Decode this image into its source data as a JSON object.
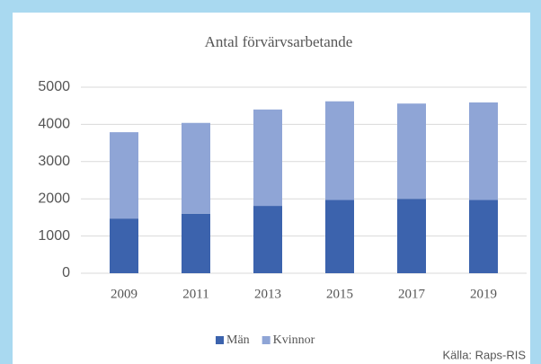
{
  "chart_data": {
    "type": "stacked_bar",
    "title": "Antal förvärvsarbetande",
    "categories": [
      "2009",
      "2011",
      "2013",
      "2015",
      "2017",
      "2019"
    ],
    "series": [
      {
        "name": "Män",
        "color": "#3c63ad",
        "values": [
          1470,
          1600,
          1810,
          1970,
          2000,
          1970
        ]
      },
      {
        "name": "Kvinnor",
        "color": "#8fa5d6",
        "values": [
          2320,
          2440,
          2590,
          2650,
          2560,
          2620
        ]
      }
    ],
    "ylim": [
      0,
      5000
    ],
    "yticks": [
      0,
      1000,
      2000,
      3000,
      4000,
      5000
    ],
    "grid": true,
    "legend": "bottom",
    "source": "Källa: Raps-RIS"
  }
}
